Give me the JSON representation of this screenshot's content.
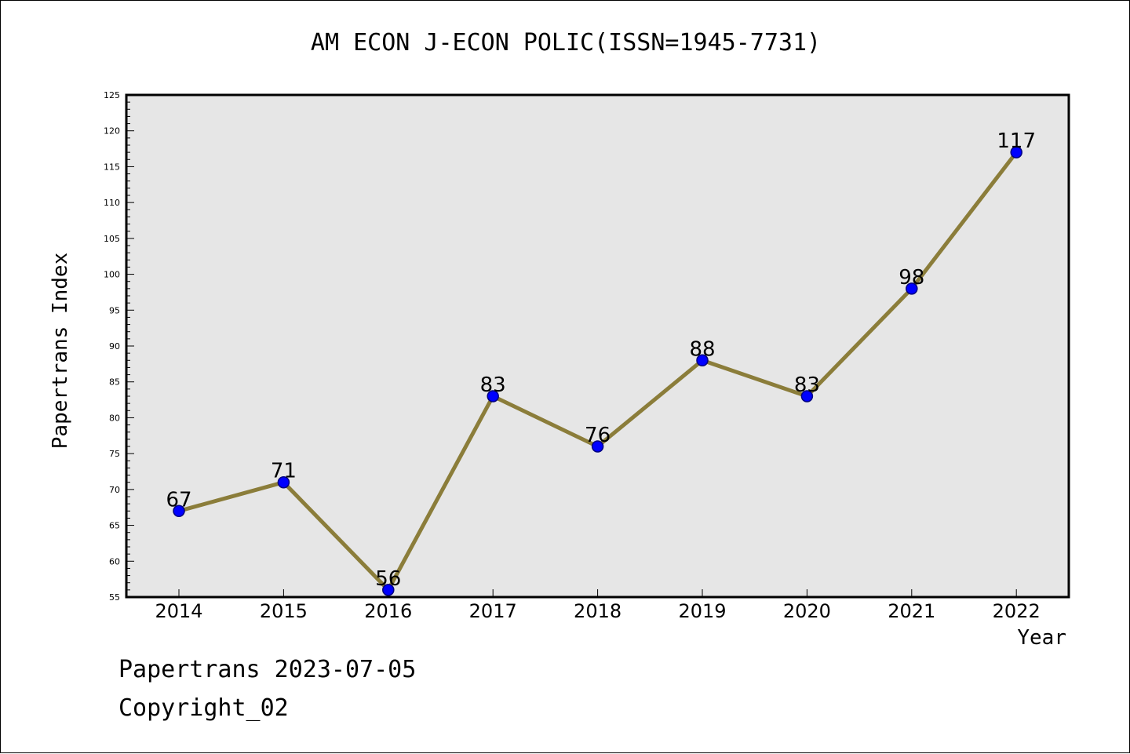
{
  "title": "AM ECON J-ECON POLIC(ISSN=1945-7731)",
  "footer": {
    "line1": "Papertrans 2023-07-05",
    "line2": "Copyright_02"
  },
  "colors": {
    "plot_background": "#e6e6e6",
    "line": "#8b7d3a",
    "marker_fill": "#0000ff",
    "marker_stroke": "#000080",
    "axis": "#000000"
  },
  "chart_data": {
    "type": "line",
    "xlabel": "Year",
    "ylabel": "Papertrans Index",
    "ylim": [
      55,
      125
    ],
    "yticks": [
      55,
      60,
      65,
      70,
      75,
      80,
      85,
      90,
      95,
      100,
      105,
      110,
      115,
      120,
      125
    ],
    "categories": [
      "2014",
      "2015",
      "2016",
      "2017",
      "2018",
      "2019",
      "2020",
      "2021",
      "2022"
    ],
    "series": [
      {
        "values": [
          67,
          71,
          56,
          83,
          76,
          88,
          83,
          98,
          117
        ]
      }
    ],
    "data_labels": true,
    "grid": false,
    "legend": "none"
  }
}
